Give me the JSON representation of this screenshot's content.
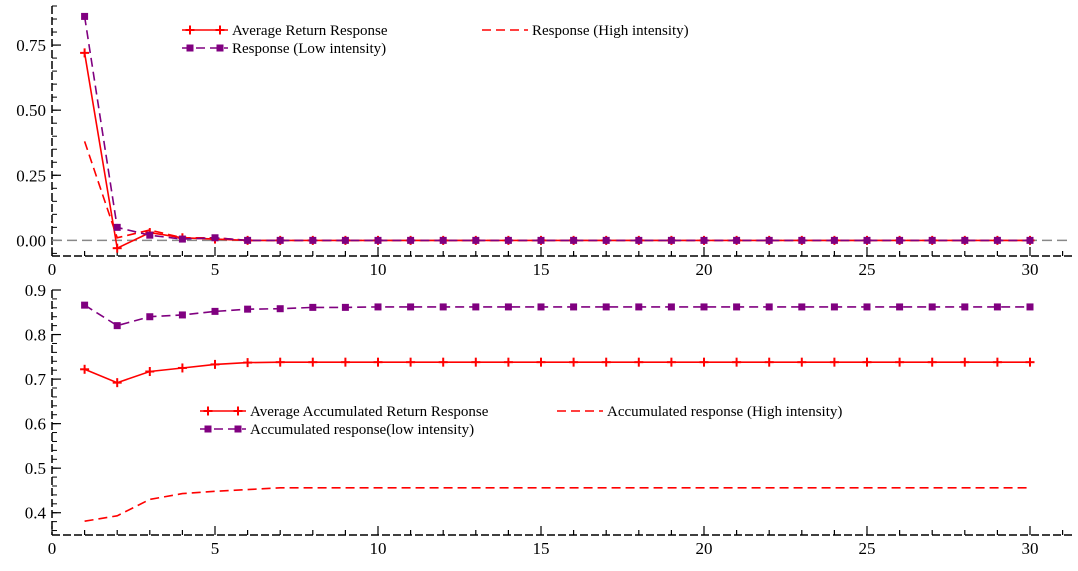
{
  "chart_data": [
    {
      "type": "line",
      "title": "",
      "xlabel": "",
      "ylabel": "",
      "xlim": [
        0,
        32
      ],
      "ylim": [
        -0.06,
        0.9
      ],
      "xticks": [
        0,
        5,
        10,
        15,
        20,
        25,
        30
      ],
      "yticks": [
        0.0,
        0.25,
        0.5,
        0.75
      ],
      "ytick_labels": [
        "0.00",
        "0.25",
        "0.50",
        "0.75"
      ],
      "xtick_labels": [
        "0",
        "5",
        "10",
        "15",
        "20",
        "25",
        "30"
      ],
      "reference_line": 0,
      "legend_position": "top-center",
      "x": [
        1,
        2,
        3,
        4,
        5,
        6,
        7,
        8,
        9,
        10,
        11,
        12,
        13,
        14,
        15,
        16,
        17,
        18,
        19,
        20,
        21,
        22,
        23,
        24,
        25,
        26,
        27,
        28,
        29,
        30
      ],
      "series": [
        {
          "name": "Average Return Response",
          "color": "#ff0000",
          "style": "solid-plus",
          "values": [
            0.72,
            -0.03,
            0.03,
            0.01,
            0.005,
            0,
            0,
            0,
            0,
            0,
            0,
            0,
            0,
            0,
            0,
            0,
            0,
            0,
            0,
            0,
            0,
            0,
            0,
            0,
            0,
            0,
            0,
            0,
            0,
            0
          ]
        },
        {
          "name": "Response (High intensity)",
          "color": "#ff0000",
          "style": "dashed",
          "values": [
            0.38,
            0.01,
            0.04,
            0.01,
            0.01,
            0,
            0,
            0,
            0,
            0,
            0,
            0,
            0,
            0,
            0,
            0,
            0,
            0,
            0,
            0,
            0,
            0,
            0,
            0,
            0,
            0,
            0,
            0,
            0,
            0
          ]
        },
        {
          "name": "Response (Low intensity)",
          "color": "#800080",
          "style": "dashed-square",
          "values": [
            0.86,
            0.05,
            0.02,
            0.005,
            0.01,
            0,
            0,
            0,
            0,
            0,
            0,
            0,
            0,
            0,
            0,
            0,
            0,
            0,
            0,
            0,
            0,
            0,
            0,
            0,
            0,
            0,
            0,
            0,
            0,
            0
          ]
        }
      ]
    },
    {
      "type": "line",
      "title": "",
      "xlabel": "",
      "ylabel": "",
      "xlim": [
        0,
        32
      ],
      "ylim": [
        0.35,
        0.9
      ],
      "xticks": [
        0,
        5,
        10,
        15,
        20,
        25,
        30
      ],
      "yticks": [
        0.4,
        0.5,
        0.6,
        0.7,
        0.8,
        0.9
      ],
      "ytick_labels": [
        "0.4",
        "0.5",
        "0.6",
        "0.7",
        "0.8",
        "0.9"
      ],
      "xtick_labels": [
        "0",
        "5",
        "10",
        "15",
        "20",
        "25",
        "30"
      ],
      "legend_position": "center",
      "x": [
        1,
        2,
        3,
        4,
        5,
        6,
        7,
        8,
        9,
        10,
        11,
        12,
        13,
        14,
        15,
        16,
        17,
        18,
        19,
        20,
        21,
        22,
        23,
        24,
        25,
        26,
        27,
        28,
        29,
        30
      ],
      "series": [
        {
          "name": "Average Accumulated Return Response",
          "color": "#ff0000",
          "style": "solid-plus",
          "values": [
            0.722,
            0.692,
            0.717,
            0.725,
            0.733,
            0.737,
            0.738,
            0.738,
            0.738,
            0.738,
            0.738,
            0.738,
            0.738,
            0.738,
            0.738,
            0.738,
            0.738,
            0.738,
            0.738,
            0.738,
            0.738,
            0.738,
            0.738,
            0.738,
            0.738,
            0.738,
            0.738,
            0.738,
            0.738,
            0.738
          ]
        },
        {
          "name": "Accumulated response (High intensity)",
          "color": "#ff0000",
          "style": "dashed",
          "values": [
            0.381,
            0.393,
            0.43,
            0.443,
            0.448,
            0.452,
            0.456,
            0.456,
            0.456,
            0.456,
            0.456,
            0.456,
            0.456,
            0.456,
            0.456,
            0.456,
            0.456,
            0.456,
            0.456,
            0.456,
            0.456,
            0.456,
            0.456,
            0.456,
            0.456,
            0.456,
            0.456,
            0.456,
            0.456,
            0.456
          ]
        },
        {
          "name": "Accumulated response(low intensity)",
          "color": "#800080",
          "style": "dashed-square",
          "values": [
            0.866,
            0.82,
            0.84,
            0.844,
            0.852,
            0.857,
            0.858,
            0.861,
            0.861,
            0.862,
            0.862,
            0.862,
            0.862,
            0.862,
            0.862,
            0.862,
            0.862,
            0.862,
            0.862,
            0.862,
            0.862,
            0.862,
            0.862,
            0.862,
            0.862,
            0.862,
            0.862,
            0.862,
            0.862,
            0.862
          ]
        }
      ]
    }
  ]
}
